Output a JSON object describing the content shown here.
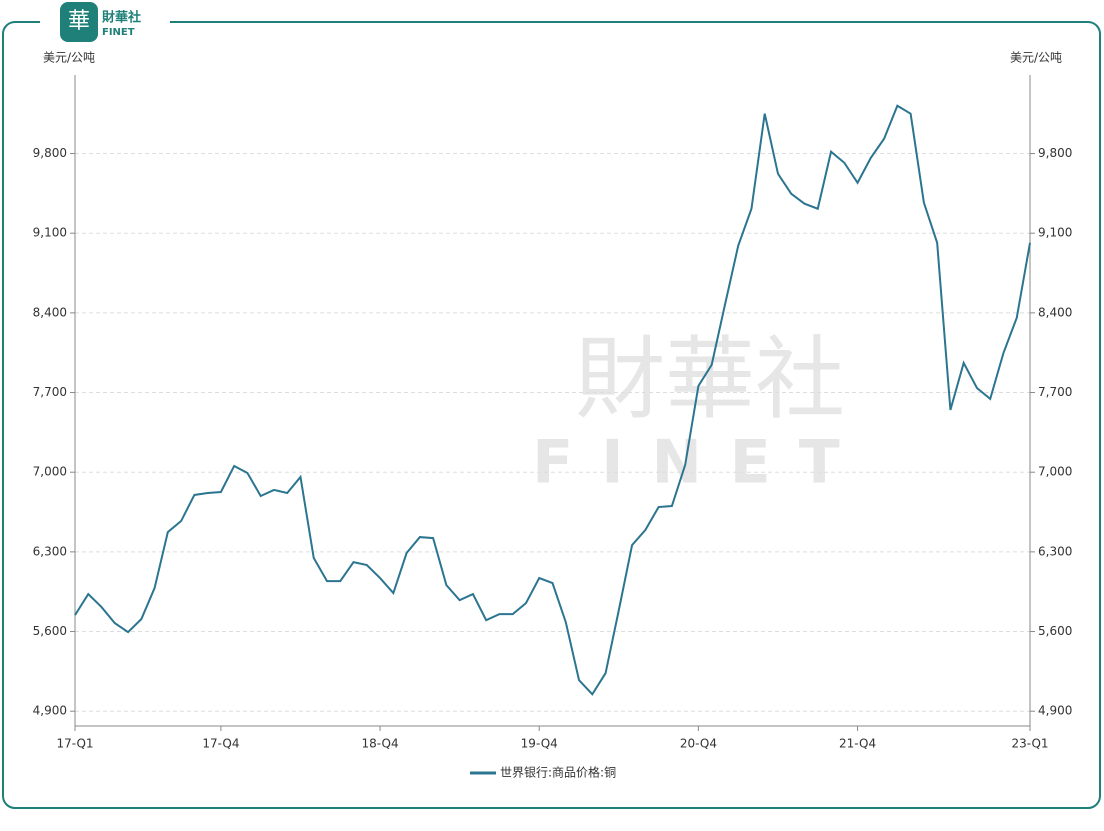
{
  "brand": {
    "name": "財華社",
    "sub": "FINET"
  },
  "chart_data": {
    "type": "line",
    "y_label": "美元/公吨",
    "y2_label": "美元/公吨",
    "categories": [
      "17-Q1",
      null,
      null,
      null,
      null,
      null,
      null,
      null,
      null,
      null,
      null,
      "17-Q4",
      null,
      null,
      null,
      null,
      null,
      null,
      null,
      null,
      null,
      null,
      null,
      "18-Q4",
      null,
      null,
      null,
      null,
      null,
      null,
      null,
      null,
      null,
      null,
      null,
      "19-Q4",
      null,
      null,
      null,
      null,
      null,
      null,
      null,
      null,
      null,
      null,
      null,
      "20-Q4",
      null,
      null,
      null,
      null,
      null,
      null,
      null,
      null,
      null,
      null,
      null,
      "21-Q4",
      null,
      null,
      null,
      null,
      null,
      null,
      null,
      null,
      null,
      null,
      null,
      null,
      "23-Q1"
    ],
    "series": [
      {
        "name": "世界银行:商品价格:铜",
        "color": "#2b7590",
        "values": [
          5744,
          5929,
          5815,
          5674,
          5595,
          5709,
          5982,
          6474,
          6571,
          6800,
          6817,
          6826,
          7055,
          6993,
          6791,
          6844,
          6817,
          6958,
          6246,
          6043,
          6043,
          6210,
          6184,
          6070,
          5938,
          6290,
          6430,
          6421,
          6008,
          5876,
          5929,
          5700,
          5753,
          5753,
          5850,
          6070,
          6026,
          5683,
          5173,
          5049,
          5234,
          5788,
          6360,
          6492,
          6694,
          6703,
          7063,
          7758,
          7943,
          8470,
          8989,
          9315,
          10150,
          9622,
          9446,
          9359,
          9315,
          9816,
          9719,
          9543,
          9763,
          9930,
          10220,
          10150,
          9368,
          9016,
          7547,
          7960,
          7740,
          7644,
          8048,
          8356,
          9016
        ]
      }
    ],
    "ylim": [
      4770,
      10490
    ],
    "yticks": [
      {
        "value": 4900,
        "label": "4,900"
      },
      {
        "value": 5600,
        "label": "5,600"
      },
      {
        "value": 6300,
        "label": "6,300"
      },
      {
        "value": 7000,
        "label": "7,000"
      },
      {
        "value": 7700,
        "label": "7,700"
      },
      {
        "value": 8400,
        "label": "8,400"
      },
      {
        "value": 9100,
        "label": "9,100"
      },
      {
        "value": 9800,
        "label": "9,800"
      }
    ],
    "y2lim": [
      4770,
      10490
    ],
    "y2ticks": [
      {
        "value": 4900,
        "label": "4,900"
      },
      {
        "value": 5600,
        "label": "5,600"
      },
      {
        "value": 6300,
        "label": "6,300"
      },
      {
        "value": 7000,
        "label": "7,000"
      },
      {
        "value": 7700,
        "label": "7,700"
      },
      {
        "value": 8400,
        "label": "8,400"
      },
      {
        "value": 9100,
        "label": "9,100"
      },
      {
        "value": 9800,
        "label": "9,800"
      }
    ],
    "grid": true,
    "legend": "bottom"
  }
}
